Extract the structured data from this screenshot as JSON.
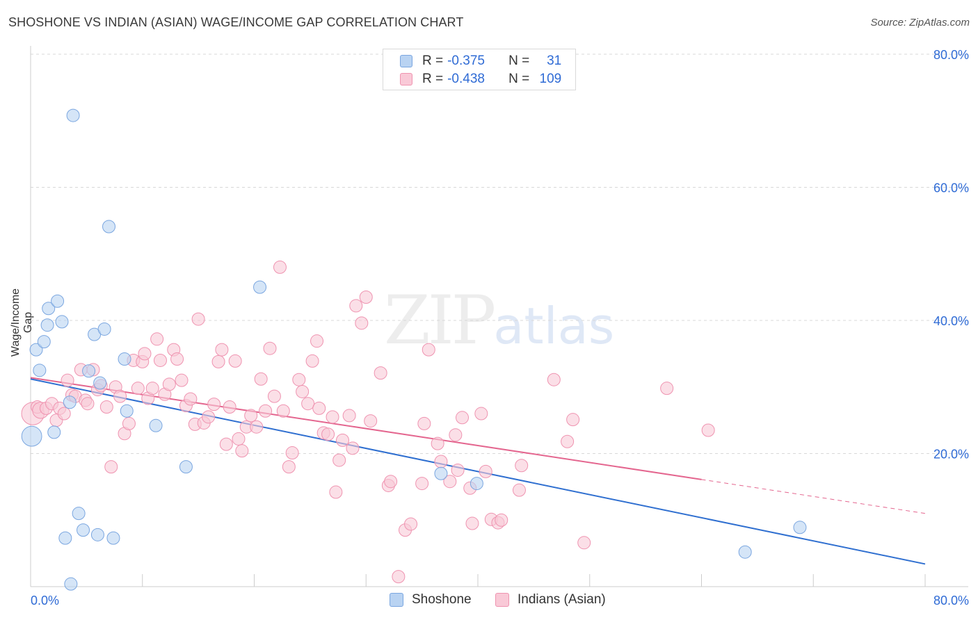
{
  "header": {
    "title": "SHOSHONE VS INDIAN (ASIAN) WAGE/INCOME GAP CORRELATION CHART",
    "source": "Source: ZipAtlas.com"
  },
  "watermark": {
    "zip": "ZIP",
    "atlas": "atlas"
  },
  "legend": {
    "rows": [
      {
        "r_label": "R =",
        "r_value": "-0.375",
        "n_label": "N =",
        "n_value": "31"
      },
      {
        "r_label": "R =",
        "r_value": "-0.438",
        "n_label": "N =",
        "n_value": "109"
      }
    ]
  },
  "bottom_legend": {
    "items": [
      "Shoshone",
      "Indians (Asian)"
    ]
  },
  "colors": {
    "shoshone_fill": "#b9d3f2",
    "shoshone_stroke": "#7aa6e0",
    "shoshone_line": "#2f6fd0",
    "indian_fill": "#f9c9d7",
    "indian_stroke": "#ef93b0",
    "indian_line": "#e4668f",
    "grid": "#d8d8d8",
    "axis_text": "#2f6bd5"
  },
  "chart_data": {
    "type": "scatter",
    "title": "SHOSHONE VS INDIAN (ASIAN) WAGE/INCOME GAP CORRELATION CHART",
    "xlabel": "",
    "ylabel": "Wage/Income Gap",
    "xlim": [
      0,
      80
    ],
    "ylim": [
      0,
      80
    ],
    "x_tick_labels": [
      "0.0%",
      "80.0%"
    ],
    "y_tick_values": [
      20,
      40,
      60,
      80
    ],
    "y_tick_labels": [
      "20.0%",
      "40.0%",
      "60.0%",
      "80.0%"
    ],
    "grid": true,
    "legend_position": "top-center",
    "series": [
      {
        "name": "Shoshone",
        "r": -0.375,
        "n": 31,
        "trend": {
          "x": [
            0,
            80
          ],
          "y": [
            31.2,
            3.4
          ],
          "dashed_from": null
        },
        "points": [
          [
            0.1,
            22.6,
            1.6
          ],
          [
            0.5,
            35.6,
            1
          ],
          [
            0.8,
            32.5,
            1
          ],
          [
            1.2,
            36.8,
            1
          ],
          [
            1.5,
            39.3,
            1
          ],
          [
            1.6,
            41.8,
            1
          ],
          [
            2.1,
            23.2,
            1
          ],
          [
            2.4,
            42.9,
            1
          ],
          [
            2.8,
            39.8,
            1
          ],
          [
            3.1,
            7.3,
            1
          ],
          [
            3.5,
            27.7,
            1
          ],
          [
            3.6,
            0.4,
            1
          ],
          [
            3.8,
            70.8,
            1
          ],
          [
            4.3,
            11.0,
            1
          ],
          [
            4.7,
            8.5,
            1
          ],
          [
            5.2,
            32.4,
            1
          ],
          [
            5.7,
            37.9,
            1
          ],
          [
            6.0,
            7.8,
            1
          ],
          [
            6.2,
            30.6,
            1
          ],
          [
            6.6,
            38.7,
            1
          ],
          [
            7.0,
            54.1,
            1
          ],
          [
            7.4,
            7.3,
            1
          ],
          [
            8.4,
            34.2,
            1
          ],
          [
            8.6,
            26.4,
            1
          ],
          [
            11.2,
            24.2,
            1
          ],
          [
            13.9,
            18.0,
            1
          ],
          [
            20.5,
            45.0,
            1
          ],
          [
            36.7,
            17.0,
            1
          ],
          [
            39.9,
            15.5,
            1
          ],
          [
            63.9,
            5.2,
            1
          ],
          [
            68.8,
            8.9,
            1
          ]
        ]
      },
      {
        "name": "Indians (Asian)",
        "r": -0.438,
        "n": 109,
        "trend": {
          "x": [
            0,
            80
          ],
          "y": [
            31.4,
            11.0
          ],
          "dashed_from": 60
        },
        "points": [
          [
            0.2,
            26.0,
            1.8
          ],
          [
            0.6,
            27.0,
            1
          ],
          [
            0.9,
            26.5,
            1.3
          ],
          [
            1.4,
            26.8,
            1
          ],
          [
            1.9,
            27.5,
            1
          ],
          [
            2.3,
            25.0,
            1
          ],
          [
            2.6,
            26.8,
            1
          ],
          [
            3.0,
            26.0,
            1
          ],
          [
            3.3,
            31.0,
            1
          ],
          [
            3.7,
            28.8,
            1
          ],
          [
            4.0,
            28.6,
            1
          ],
          [
            4.5,
            32.6,
            1
          ],
          [
            4.9,
            28.0,
            1
          ],
          [
            5.1,
            27.5,
            1
          ],
          [
            5.6,
            32.6,
            1
          ],
          [
            6.0,
            29.6,
            1
          ],
          [
            6.3,
            30.2,
            1
          ],
          [
            6.8,
            27.0,
            1
          ],
          [
            7.2,
            18.0,
            1
          ],
          [
            7.6,
            30.0,
            1
          ],
          [
            8.0,
            28.6,
            1
          ],
          [
            8.4,
            23.0,
            1
          ],
          [
            8.8,
            24.5,
            1
          ],
          [
            9.2,
            34.0,
            1
          ],
          [
            9.6,
            29.8,
            1
          ],
          [
            10.0,
            33.8,
            1
          ],
          [
            10.2,
            35.0,
            1
          ],
          [
            10.5,
            28.3,
            1
          ],
          [
            10.9,
            29.8,
            1
          ],
          [
            11.3,
            37.2,
            1
          ],
          [
            11.6,
            34.0,
            1
          ],
          [
            12.0,
            28.9,
            1
          ],
          [
            12.4,
            30.4,
            1
          ],
          [
            12.8,
            35.6,
            1
          ],
          [
            13.1,
            34.2,
            1
          ],
          [
            13.5,
            31.0,
            1
          ],
          [
            13.9,
            27.2,
            1
          ],
          [
            14.3,
            28.2,
            1
          ],
          [
            14.7,
            24.4,
            1
          ],
          [
            15.0,
            40.2,
            1
          ],
          [
            15.5,
            24.6,
            1
          ],
          [
            15.9,
            25.5,
            1
          ],
          [
            16.4,
            27.4,
            1
          ],
          [
            16.8,
            33.8,
            1
          ],
          [
            17.1,
            35.6,
            1
          ],
          [
            17.5,
            21.4,
            1
          ],
          [
            17.8,
            27.0,
            1
          ],
          [
            18.3,
            33.9,
            1
          ],
          [
            18.6,
            22.2,
            1
          ],
          [
            18.9,
            20.4,
            1
          ],
          [
            19.3,
            24.0,
            1
          ],
          [
            19.7,
            25.7,
            1
          ],
          [
            20.2,
            24.0,
            1
          ],
          [
            20.6,
            31.2,
            1
          ],
          [
            21.0,
            26.4,
            1
          ],
          [
            21.4,
            35.8,
            1
          ],
          [
            21.8,
            28.6,
            1
          ],
          [
            22.3,
            48.0,
            1
          ],
          [
            22.6,
            26.4,
            1
          ],
          [
            23.1,
            18.0,
            1
          ],
          [
            23.4,
            20.1,
            1
          ],
          [
            24.0,
            31.1,
            1
          ],
          [
            24.3,
            29.3,
            1
          ],
          [
            24.8,
            27.5,
            1
          ],
          [
            25.2,
            33.9,
            1
          ],
          [
            25.6,
            36.9,
            1
          ],
          [
            25.8,
            26.8,
            1
          ],
          [
            26.2,
            23.1,
            1
          ],
          [
            26.6,
            22.9,
            1
          ],
          [
            27.0,
            25.5,
            1
          ],
          [
            27.3,
            14.2,
            1
          ],
          [
            27.6,
            19.0,
            1
          ],
          [
            27.9,
            22.0,
            1
          ],
          [
            28.5,
            25.7,
            1
          ],
          [
            28.8,
            20.8,
            1
          ],
          [
            29.1,
            42.2,
            1
          ],
          [
            29.6,
            39.6,
            1
          ],
          [
            30.0,
            43.5,
            1
          ],
          [
            30.4,
            24.9,
            1
          ],
          [
            31.3,
            32.1,
            1
          ],
          [
            32.0,
            15.2,
            1
          ],
          [
            32.2,
            15.8,
            1
          ],
          [
            32.9,
            1.5,
            1
          ],
          [
            33.5,
            8.5,
            1
          ],
          [
            34.0,
            9.4,
            1
          ],
          [
            35.0,
            15.5,
            1
          ],
          [
            35.2,
            24.5,
            1
          ],
          [
            35.6,
            35.6,
            1
          ],
          [
            36.4,
            21.5,
            1
          ],
          [
            36.7,
            18.8,
            1
          ],
          [
            37.5,
            15.8,
            1
          ],
          [
            38.0,
            22.8,
            1
          ],
          [
            38.2,
            17.5,
            1
          ],
          [
            38.6,
            25.4,
            1
          ],
          [
            39.3,
            14.8,
            1
          ],
          [
            39.5,
            9.5,
            1
          ],
          [
            40.3,
            26.0,
            1
          ],
          [
            40.7,
            17.3,
            1
          ],
          [
            41.2,
            10.1,
            1
          ],
          [
            41.8,
            9.6,
            1
          ],
          [
            42.1,
            10.0,
            1
          ],
          [
            43.7,
            14.5,
            1
          ],
          [
            43.9,
            18.2,
            1
          ],
          [
            46.8,
            31.1,
            1
          ],
          [
            48.0,
            21.8,
            1
          ],
          [
            48.5,
            25.1,
            1
          ],
          [
            49.5,
            6.6,
            1
          ],
          [
            56.9,
            29.8,
            1
          ],
          [
            60.6,
            23.5,
            1
          ]
        ]
      }
    ]
  }
}
